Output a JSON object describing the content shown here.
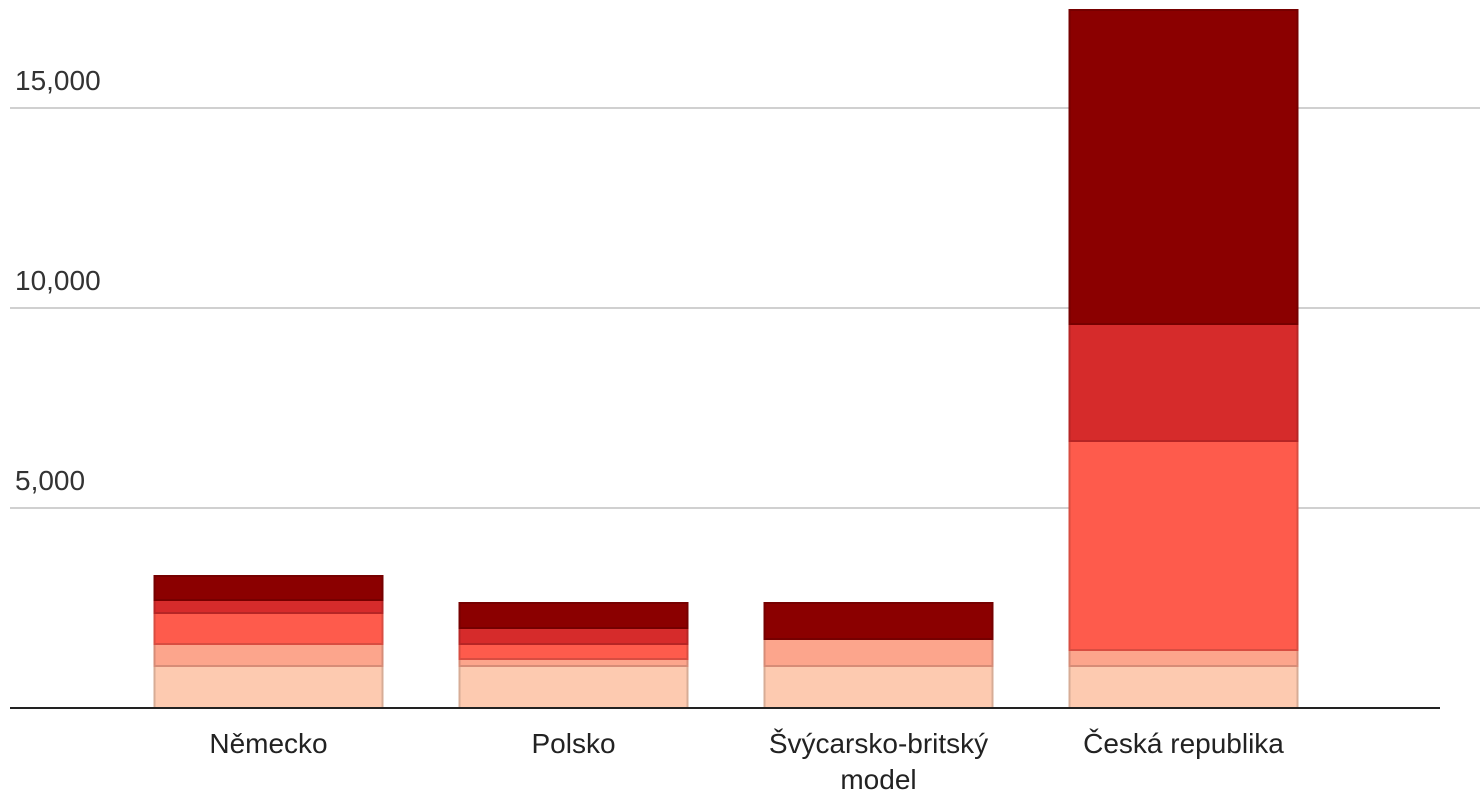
{
  "chart_data": {
    "type": "stacked_bar",
    "categories": [
      "Německo",
      "Polsko",
      "Švýcarsko-britský model",
      "Česká republika"
    ],
    "series": [
      {
        "color": "#fdcab0",
        "values": [
          1050,
          1050,
          1050,
          1050
        ]
      },
      {
        "color": "#fca58c",
        "values": [
          550,
          175,
          675,
          400
        ]
      },
      {
        "color": "#fe5b4c",
        "values": [
          775,
          375,
          0,
          5225
        ]
      },
      {
        "color": "#d62b2b",
        "values": [
          325,
          400,
          0,
          2925
        ]
      },
      {
        "color": "#8b0000",
        "values": [
          600,
          625,
          900,
          7850
        ]
      }
    ],
    "ylim": [
      0,
      17500
    ],
    "yticks": [
      {
        "value": 5000,
        "label": "5,000"
      },
      {
        "value": 10000,
        "label": "10,000"
      },
      {
        "value": 15000,
        "label": "15,000"
      }
    ],
    "grid": true
  }
}
